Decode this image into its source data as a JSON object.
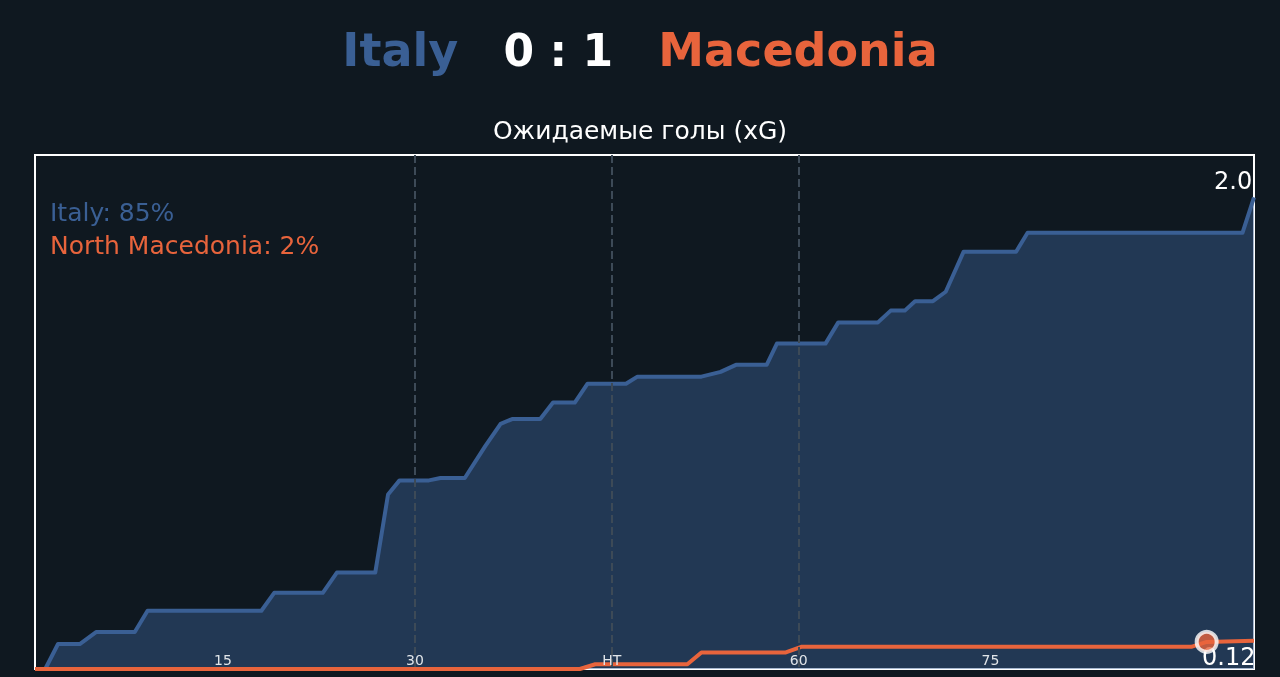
{
  "chart_data": {
    "type": "area",
    "title": "Italy 0 : 1 Macedonia",
    "subtitle": "Ожидаемые голы (xG)",
    "xlim": [
      0.3,
      95.6
    ],
    "xticks": [
      15,
      30,
      {
        "value": 45.4,
        "label": "HT"
      },
      60,
      75
    ],
    "ylim": [
      0,
      2.18
    ],
    "tick_labels": "x",
    "grid": "x",
    "legend": "top left",
    "marker": "none",
    "series": [
      {
        "name": "Italy: 85%",
        "color": "#3a5f94",
        "x": [
          1.1,
          2.1,
          3.8,
          5.1,
          8.1,
          9.1,
          18.0,
          19.0,
          22.8,
          23.9,
          26.9,
          27.9,
          28.8,
          31.1,
          32.0,
          33.9,
          35.5,
          36.7,
          37.6,
          39.8,
          40.8,
          42.5,
          43.5,
          46.5,
          47.4,
          52.4,
          53.9,
          55.1,
          57.5,
          58.3,
          62.1,
          63.1,
          66.2,
          67.2,
          68.3,
          69.1,
          70.5,
          71.5,
          72.9,
          77.0,
          77.9,
          94.7,
          95.6
        ],
        "values": [
          0,
          0.106,
          0.106,
          0.157,
          0.157,
          0.247,
          0.247,
          0.323,
          0.323,
          0.409,
          0.409,
          0.74,
          0.8,
          0.8,
          0.81,
          0.81,
          0.945,
          1.04,
          1.06,
          1.06,
          1.13,
          1.13,
          1.21,
          1.21,
          1.24,
          1.24,
          1.26,
          1.29,
          1.29,
          1.38,
          1.38,
          1.47,
          1.47,
          1.52,
          1.52,
          1.56,
          1.56,
          1.6,
          1.77,
          1.77,
          1.85,
          1.85,
          2.0
        ],
        "value_labels": [
          null,
          null,
          null,
          null,
          null,
          null,
          null,
          null,
          null,
          null,
          null,
          null,
          null,
          null,
          null,
          null,
          null,
          null,
          null,
          null,
          null,
          null,
          null,
          null,
          null,
          null,
          null,
          null,
          null,
          null,
          null,
          null,
          null,
          null,
          null,
          null,
          null,
          null,
          null,
          null,
          null,
          null,
          "2.0"
        ]
      },
      {
        "name": "North Macedonia: 2%",
        "type": "line",
        "color": "#e8643c",
        "x": [
          0.3,
          42.9,
          44.1,
          51.3,
          52.4,
          59.0,
          60.2,
          90.7,
          91.9,
          95.6
        ],
        "values": [
          0,
          0,
          0.02,
          0.02,
          0.07,
          0.07,
          0.094,
          0.094,
          0.115,
          0.12
        ],
        "value_labels": [
          null,
          null,
          null,
          null,
          null,
          null,
          null,
          null,
          null,
          "0.12"
        ]
      },
      {
        "type": "scatter",
        "color": "#e8643c",
        "marker": "circle",
        "x": [
          91.9
        ],
        "values": [
          0.115
        ]
      }
    ]
  }
}
